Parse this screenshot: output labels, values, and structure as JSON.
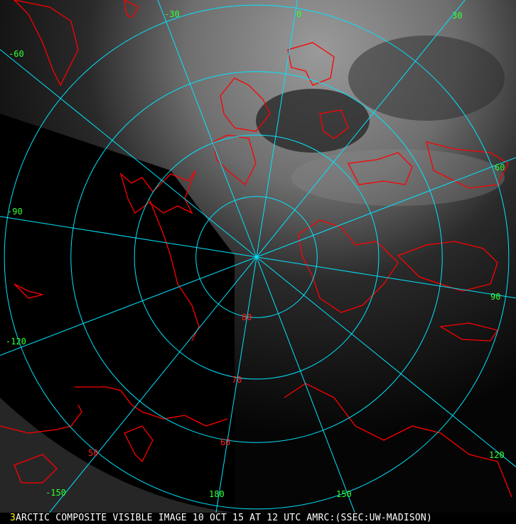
{
  "caption": {
    "frame_number": "3",
    "text": "ARCTIC COMPOSITE VISIBLE IMAGE 10 OCT 15 AT 12 UTC AMRC:(SSEC:UW-MADISON)"
  },
  "colors": {
    "grid": "#00e5ff",
    "coastline": "#ff0000",
    "longitude_label": "#33ff33",
    "latitude_label": "#ff2020",
    "frame_number": "#ffff00"
  },
  "projection": "north polar stereographic",
  "grid": {
    "latitudes": [
      80,
      70,
      60,
      50
    ],
    "longitudes": [
      0,
      30,
      60,
      90,
      120,
      150,
      180,
      -150,
      -120,
      -90,
      -60,
      -30
    ]
  },
  "longitude_labels": [
    "-30",
    "0",
    "30",
    "-60",
    "60",
    "-90",
    "90",
    "-120",
    "120",
    "-150",
    "150",
    "180"
  ],
  "latitude_labels": [
    "80",
    "70",
    "60",
    "50"
  ]
}
